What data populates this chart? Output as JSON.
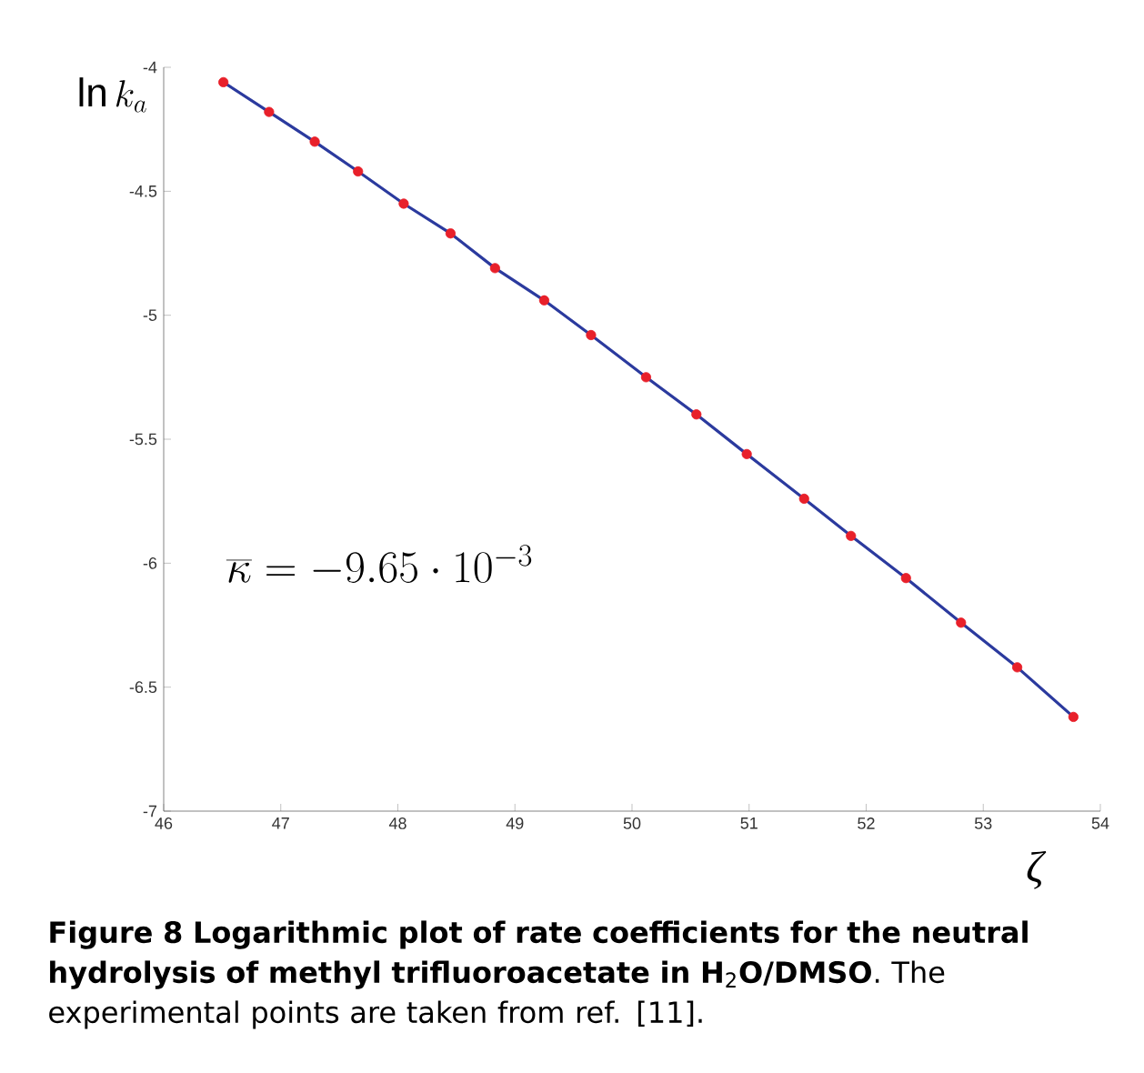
{
  "chart_data": {
    "type": "scatter",
    "title": "**Figure 8 Logarithmic plot of rate coefficients for the neutral hydrolysis of methyl trifluoroacetate in H**$_{2}$**O/DMSO**.",
    "annotations": [
      "The experimental points are taken from ref. [11].",
      "\\overline{\\kappa} = -9.65\\cdot 10^{-3}"
    ],
    "xlabel": "ζ",
    "ylabel": "\\ln k_{a}",
    "xlim": [
      46,
      54
    ],
    "ylim": [
      -7,
      -4
    ],
    "xticks": [
      46,
      47,
      48,
      49,
      50,
      51,
      52,
      53,
      54
    ],
    "yticks": [
      -7,
      -6.5,
      -6,
      -5.5,
      -5,
      -4.5,
      -4
    ],
    "grid": false,
    "series": [
      {
        "type": "line",
        "color": "#2b3a9e",
        "marker": "none",
        "x": [
          46.51,
          46.9,
          47.29,
          47.66,
          48.05,
          48.45,
          48.83,
          49.25,
          49.65,
          50.12,
          50.55,
          50.98,
          51.47,
          51.87,
          52.34,
          52.81,
          53.29,
          53.77
        ],
        "values": [
          -4.06,
          -4.18,
          -4.3,
          -4.42,
          -4.55,
          -4.67,
          -4.81,
          -4.94,
          -5.08,
          -5.25,
          -5.4,
          -5.56,
          -5.74,
          -5.89,
          -6.06,
          -6.24,
          -6.42,
          -6.62
        ]
      },
      {
        "color": "#e8202a",
        "marker": "circle",
        "x": [
          46.51,
          46.9,
          47.29,
          47.66,
          48.05,
          48.45,
          48.83,
          49.25,
          49.65,
          50.12,
          50.55,
          50.98,
          51.47,
          51.87,
          52.34,
          52.81,
          53.29,
          53.77
        ],
        "values": [
          -4.06,
          -4.18,
          -4.3,
          -4.42,
          -4.55,
          -4.67,
          -4.81,
          -4.94,
          -5.08,
          -5.25,
          -5.4,
          -5.56,
          -5.74,
          -5.89,
          -6.06,
          -6.24,
          -6.42,
          -6.62
        ]
      }
    ]
  }
}
